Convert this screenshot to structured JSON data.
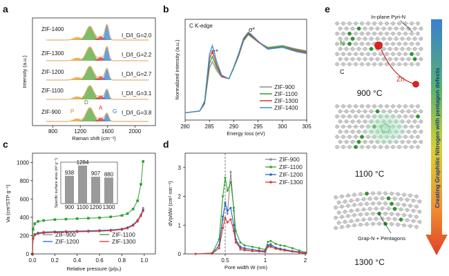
{
  "panels": {
    "a": {
      "label": "a",
      "xlabel": "Raman shift (cm⁻¹)",
      "ylabel": "Intensity (a.u.)",
      "xticks": [
        "800",
        "1200",
        "1600",
        "2000"
      ],
      "samples": [
        "ZIF-1400",
        "ZIF-1300",
        "ZIF-1200",
        "ZIF-1100",
        "ZIF-900"
      ],
      "ratios": [
        "I_D/I_G=2.0",
        "I_D/I_G=2.2",
        "I_D/I_G=2.7",
        "I_D/I_G=3.1",
        "I_D/I_G=3.8"
      ],
      "bands": {
        "P": "P",
        "D": "D",
        "A": "A",
        "G": "G"
      }
    },
    "b": {
      "label": "b",
      "title": "C K-edge",
      "xlabel": "Energy loss (eV)",
      "ylabel": "Normalized intensity (a.u.)",
      "xticks": [
        "280",
        "285",
        "290",
        "295",
        "300",
        "305"
      ],
      "peak_pi": "π*",
      "peak_sigma": "σ*",
      "legend": [
        "ZIF-900",
        "ZIF-1100",
        "ZIF-1300",
        "ZIF-1400"
      ]
    },
    "c": {
      "label": "c",
      "xlabel": "Relative pressure (p/p₀)",
      "ylabel": "Va (cm³STP g⁻¹)",
      "xticks": [
        "0.0",
        "0.2",
        "0.4",
        "0.6",
        "0.8",
        "1.0"
      ],
      "yticks": [
        "0",
        "200",
        "400",
        "600",
        "800",
        "1000"
      ],
      "legend": [
        "ZIF-900",
        "ZIF-1100",
        "ZIF-1200",
        "ZIF-1300"
      ],
      "inset_ylabel": "Specific surface area (m² g⁻¹)",
      "inset_categories": [
        "900",
        "1100",
        "1200",
        "1300"
      ],
      "inset_values": [
        "938",
        "1284",
        "907",
        "880"
      ]
    },
    "d": {
      "label": "d",
      "xlabel": "Pore width W (nm)",
      "ylabel": "dVp/dW (cm³ nm⁻¹)",
      "xticks": [
        "0.5",
        "1",
        "2"
      ],
      "yticks": [
        "0",
        "1",
        "2",
        "3"
      ],
      "legend": [
        "ZIF-900",
        "ZIF-1100",
        "ZIF-1200",
        "ZIF-1300"
      ]
    },
    "e": {
      "label": "e",
      "n_label": "N",
      "c_label": "C",
      "zn_label": "Zn",
      "pyri_label": "In-plane Pyri-N",
      "grap_label": "Grap-N + Pentagons",
      "temps": [
        "900 °C",
        "1100 °C",
        "1300 °C"
      ],
      "arrow_text": "Creating Graphitic Nitrogen with pentagon defects"
    }
  },
  "colors": {
    "zif900": "#8a8a8a",
    "zif1100": "#2ca02c",
    "zif1200": "#2464c8",
    "zif1300": "#e03030",
    "zif1400": "#3a8fd0",
    "d_band": "#6ab04c",
    "g_band": "#4a90d9",
    "a_band": "#e04040",
    "p_band": "#f0a030"
  },
  "chart_data": [
    {
      "type": "area",
      "panel": "a",
      "title": "",
      "xlabel": "Raman shift (cm⁻¹)",
      "ylabel": "Intensity (a.u.)",
      "xlim": [
        500,
        2300
      ],
      "series": [
        {
          "name": "ZIF-1400",
          "ratio": 2.0
        },
        {
          "name": "ZIF-1300",
          "ratio": 2.2
        },
        {
          "name": "ZIF-1200",
          "ratio": 2.7
        },
        {
          "name": "ZIF-1100",
          "ratio": 3.1
        },
        {
          "name": "ZIF-900",
          "ratio": 3.8
        }
      ],
      "band_positions": {
        "P": 1150,
        "D": 1340,
        "A": 1500,
        "G": 1590
      }
    },
    {
      "type": "line",
      "panel": "b",
      "title": "C K-edge",
      "xlabel": "Energy loss (eV)",
      "ylabel": "Normalized intensity (a.u.)",
      "xlim": [
        280,
        305
      ],
      "series": [
        {
          "name": "ZIF-900",
          "x": [
            280,
            283,
            284,
            285,
            285.6,
            286.5,
            287.5,
            289,
            290,
            291,
            292,
            293,
            293.5,
            295,
            297,
            300,
            303,
            305
          ],
          "y": [
            0.05,
            0.07,
            0.15,
            0.55,
            0.62,
            0.52,
            0.45,
            0.43,
            0.55,
            0.68,
            0.85,
            0.92,
            0.9,
            0.84,
            0.78,
            0.8,
            0.76,
            0.74
          ]
        },
        {
          "name": "ZIF-1100",
          "x": [
            280,
            283,
            284,
            285,
            285.6,
            286.5,
            287.5,
            289,
            290,
            291,
            292,
            293,
            293.5,
            295,
            297,
            300,
            303,
            305
          ],
          "y": [
            0.05,
            0.07,
            0.16,
            0.6,
            0.68,
            0.55,
            0.46,
            0.43,
            0.55,
            0.69,
            0.86,
            0.93,
            0.91,
            0.84,
            0.77,
            0.79,
            0.75,
            0.73
          ]
        },
        {
          "name": "ZIF-1300",
          "x": [
            280,
            283,
            284,
            285,
            285.6,
            286.5,
            287.5,
            289,
            290,
            291,
            292,
            293,
            293.5,
            295,
            297,
            300,
            303,
            305
          ],
          "y": [
            0.05,
            0.07,
            0.17,
            0.65,
            0.74,
            0.58,
            0.46,
            0.43,
            0.56,
            0.7,
            0.87,
            0.94,
            0.92,
            0.84,
            0.76,
            0.78,
            0.74,
            0.72
          ]
        },
        {
          "name": "ZIF-1400",
          "x": [
            280,
            283,
            284,
            285,
            285.6,
            286.5,
            287.5,
            289,
            290,
            291,
            292,
            293,
            293.5,
            295,
            297,
            300,
            303,
            305
          ],
          "y": [
            0.05,
            0.07,
            0.18,
            0.7,
            0.8,
            0.62,
            0.47,
            0.43,
            0.56,
            0.71,
            0.88,
            0.95,
            0.93,
            0.85,
            0.76,
            0.78,
            0.73,
            0.71
          ]
        }
      ]
    },
    {
      "type": "scatter",
      "panel": "c",
      "title": "",
      "xlabel": "Relative pressure (p/p₀)",
      "ylabel": "Va (cm³STP g⁻¹)",
      "xlim": [
        0,
        1.1
      ],
      "ylim": [
        0,
        1100
      ],
      "series": [
        {
          "name": "ZIF-900",
          "x": [
            0,
            0.005,
            0.02,
            0.05,
            0.1,
            0.2,
            0.3,
            0.4,
            0.5,
            0.6,
            0.7,
            0.8,
            0.85,
            0.9,
            0.94,
            0.97,
            0.99
          ],
          "y": [
            0,
            175,
            215,
            232,
            240,
            245,
            248,
            251,
            254,
            258,
            263,
            275,
            290,
            320,
            370,
            430,
            500
          ]
        },
        {
          "name": "ZIF-1100",
          "x": [
            0,
            0.005,
            0.02,
            0.05,
            0.1,
            0.2,
            0.3,
            0.4,
            0.5,
            0.6,
            0.7,
            0.8,
            0.85,
            0.9,
            0.94,
            0.97,
            0.99
          ],
          "y": [
            0,
            270,
            330,
            355,
            365,
            375,
            380,
            385,
            390,
            395,
            405,
            420,
            440,
            490,
            580,
            760,
            1010
          ]
        },
        {
          "name": "ZIF-1200",
          "x": [
            0,
            0.005,
            0.02,
            0.05,
            0.1,
            0.2,
            0.3,
            0.4,
            0.5,
            0.6,
            0.7,
            0.8,
            0.85,
            0.9,
            0.94,
            0.97,
            0.99
          ],
          "y": [
            0,
            170,
            210,
            225,
            233,
            240,
            243,
            246,
            249,
            253,
            258,
            270,
            285,
            315,
            360,
            420,
            480
          ]
        },
        {
          "name": "ZIF-1300",
          "x": [
            0,
            0.005,
            0.02,
            0.05,
            0.1,
            0.2,
            0.3,
            0.4,
            0.5,
            0.6,
            0.7,
            0.8,
            0.85,
            0.9,
            0.94,
            0.97,
            0.99
          ],
          "y": [
            0,
            165,
            205,
            220,
            228,
            235,
            238,
            241,
            244,
            248,
            253,
            265,
            280,
            310,
            355,
            415,
            470
          ]
        }
      ],
      "inset": {
        "type": "bar",
        "categories": [
          "900",
          "1100",
          "1200",
          "1300"
        ],
        "values": [
          938,
          1284,
          907,
          880
        ],
        "ylabel": "Specific surface area (m² g⁻¹)"
      }
    },
    {
      "type": "line",
      "panel": "d",
      "title": "",
      "xlabel": "Pore width W (nm)",
      "ylabel": "dVp/dW (cm³ nm⁻¹)",
      "ylim": [
        0,
        3.5
      ],
      "series": [
        {
          "name": "ZIF-900",
          "x": [
            0.3,
            0.4,
            0.45,
            0.48,
            0.5,
            0.52,
            0.55,
            0.58,
            0.6,
            0.65,
            0.7,
            0.8,
            0.9,
            1.0,
            1.05,
            1.1,
            1.2,
            1.3,
            1.4,
            1.6,
            1.8,
            2.0
          ],
          "y": [
            0,
            0.02,
            0.3,
            1.2,
            1.8,
            1.4,
            2.85,
            1.5,
            0.5,
            0.15,
            0.12,
            0.1,
            0.08,
            0.06,
            0.3,
            0.35,
            0.2,
            0.15,
            0.12,
            0.08,
            0.05,
            0.02
          ]
        },
        {
          "name": "ZIF-1100",
          "x": [
            0.3,
            0.4,
            0.45,
            0.48,
            0.5,
            0.52,
            0.55,
            0.58,
            0.6,
            0.65,
            0.7,
            0.8,
            0.9,
            1.0,
            1.05,
            1.1,
            1.2,
            1.3,
            1.4,
            1.6,
            1.8,
            2.0
          ],
          "y": [
            0,
            0.03,
            0.5,
            2.0,
            2.65,
            2.2,
            2.5,
            1.6,
            0.8,
            0.4,
            0.3,
            0.25,
            0.2,
            0.15,
            0.42,
            0.45,
            0.35,
            0.3,
            0.28,
            0.2,
            0.12,
            0.05
          ]
        },
        {
          "name": "ZIF-1200",
          "x": [
            0.3,
            0.4,
            0.45,
            0.48,
            0.5,
            0.52,
            0.55,
            0.58,
            0.6,
            0.65,
            0.7,
            0.8,
            0.9,
            1.0,
            1.05,
            1.1,
            1.2,
            1.3,
            1.4,
            1.6,
            1.8,
            2.0
          ],
          "y": [
            0,
            0.02,
            0.3,
            1.3,
            1.75,
            1.5,
            1.6,
            1.0,
            0.5,
            0.25,
            0.2,
            0.15,
            0.12,
            0.1,
            0.3,
            0.3,
            0.22,
            0.18,
            0.15,
            0.1,
            0.07,
            0.03
          ]
        },
        {
          "name": "ZIF-1300",
          "x": [
            0.3,
            0.4,
            0.45,
            0.48,
            0.5,
            0.52,
            0.55,
            0.58,
            0.6,
            0.65,
            0.7,
            0.8,
            0.9,
            1.0,
            1.05,
            1.1,
            1.2,
            1.3,
            1.4,
            1.6,
            1.8,
            2.0
          ],
          "y": [
            0,
            0.01,
            0.2,
            0.9,
            1.25,
            1.1,
            1.2,
            0.8,
            0.4,
            0.2,
            0.15,
            0.1,
            0.1,
            0.08,
            0.25,
            0.25,
            0.18,
            0.15,
            0.12,
            0.08,
            0.05,
            0.02
          ]
        }
      ]
    }
  ]
}
